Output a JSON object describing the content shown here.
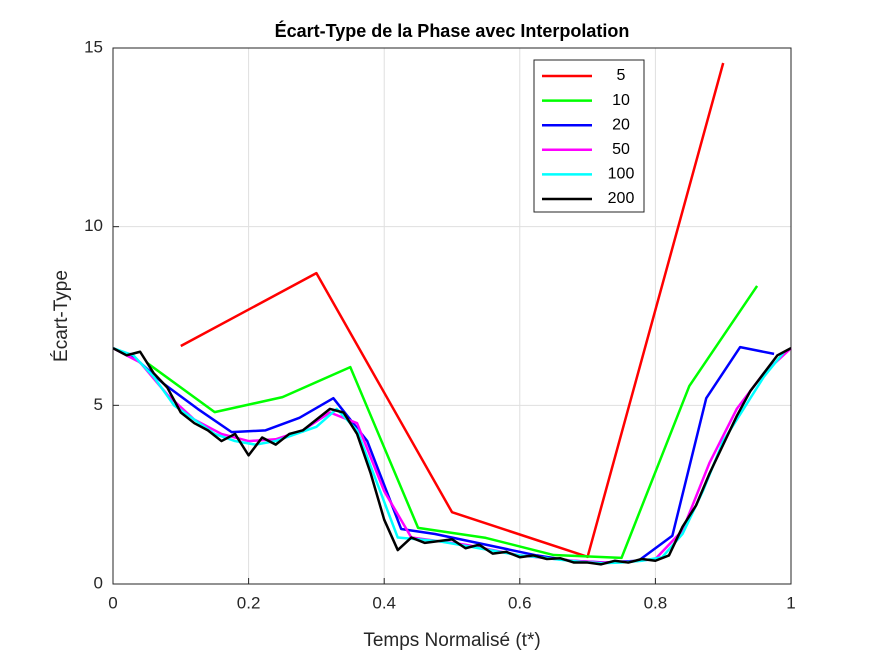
{
  "chart_data": {
    "type": "line",
    "title": "Écart-Type de la Phase avec Interpolation",
    "xlabel": "Temps Normalisé (t*)",
    "ylabel": "Écart-Type",
    "xlim": [
      0,
      1
    ],
    "ylim": [
      0,
      15
    ],
    "xticks": [
      0,
      0.2,
      0.4,
      0.6,
      0.8,
      1
    ],
    "yticks": [
      0,
      5,
      10,
      15
    ],
    "grid": true,
    "legend": "upper right",
    "series": [
      {
        "name": "5",
        "color": "#ff0000",
        "x": [
          0.1,
          0.3,
          0.5,
          0.7,
          0.9
        ],
        "values": [
          6.66,
          8.7,
          2.01,
          0.76,
          14.58
        ]
      },
      {
        "name": "10",
        "color": "#00ff00",
        "x": [
          0.05,
          0.15,
          0.25,
          0.35,
          0.45,
          0.55,
          0.65,
          0.75,
          0.85,
          0.95
        ],
        "values": [
          6.19,
          4.81,
          5.23,
          6.07,
          1.57,
          1.29,
          0.81,
          0.73,
          5.54,
          8.34
        ]
      },
      {
        "name": "20",
        "color": "#0000ff",
        "x": [
          0.025,
          0.075,
          0.125,
          0.175,
          0.225,
          0.275,
          0.325,
          0.375,
          0.425,
          0.475,
          0.525,
          0.575,
          0.625,
          0.675,
          0.725,
          0.775,
          0.825,
          0.875,
          0.925,
          0.975
        ],
        "values": [
          6.45,
          5.6,
          4.9,
          4.25,
          4.3,
          4.65,
          5.2,
          4.0,
          1.54,
          1.4,
          1.2,
          1.0,
          0.8,
          0.65,
          0.6,
          0.65,
          1.35,
          5.2,
          6.63,
          6.44
        ]
      },
      {
        "name": "50",
        "color": "#ff00ff",
        "x": [
          0,
          0.04,
          0.08,
          0.12,
          0.16,
          0.2,
          0.24,
          0.28,
          0.32,
          0.36,
          0.4,
          0.44,
          0.48,
          0.52,
          0.56,
          0.6,
          0.64,
          0.68,
          0.72,
          0.76,
          0.8,
          0.84,
          0.88,
          0.92,
          0.96,
          1
        ],
        "values": [
          6.6,
          6.2,
          5.3,
          4.6,
          4.2,
          4.0,
          4.05,
          4.3,
          4.8,
          4.5,
          2.6,
          1.3,
          1.2,
          1.1,
          0.95,
          0.8,
          0.72,
          0.65,
          0.6,
          0.62,
          0.7,
          1.5,
          3.4,
          4.9,
          5.9,
          6.6
        ]
      },
      {
        "name": "100",
        "color": "#00ffff",
        "x": [
          0,
          0.03,
          0.06,
          0.09,
          0.12,
          0.15,
          0.18,
          0.21,
          0.24,
          0.27,
          0.3,
          0.33,
          0.36,
          0.39,
          0.42,
          0.45,
          0.48,
          0.51,
          0.54,
          0.57,
          0.6,
          0.63,
          0.66,
          0.69,
          0.72,
          0.75,
          0.78,
          0.81,
          0.84,
          0.87,
          0.9,
          0.93,
          0.96,
          0.99
        ],
        "values": [
          6.6,
          6.4,
          5.8,
          5.0,
          4.6,
          4.2,
          4.0,
          3.9,
          4.0,
          4.2,
          4.4,
          4.9,
          4.3,
          2.8,
          1.3,
          1.25,
          1.2,
          1.1,
          1.0,
          0.9,
          0.8,
          0.75,
          0.68,
          0.62,
          0.58,
          0.6,
          0.65,
          0.75,
          1.4,
          2.6,
          4.0,
          4.9,
          5.8,
          6.5
        ]
      },
      {
        "name": "200",
        "color": "#000000",
        "x": [
          0,
          0.02,
          0.04,
          0.06,
          0.08,
          0.1,
          0.12,
          0.14,
          0.16,
          0.18,
          0.2,
          0.22,
          0.24,
          0.26,
          0.28,
          0.3,
          0.32,
          0.34,
          0.36,
          0.38,
          0.4,
          0.42,
          0.44,
          0.46,
          0.48,
          0.5,
          0.52,
          0.54,
          0.56,
          0.58,
          0.6,
          0.62,
          0.64,
          0.66,
          0.68,
          0.7,
          0.72,
          0.74,
          0.76,
          0.78,
          0.8,
          0.82,
          0.84,
          0.86,
          0.88,
          0.9,
          0.92,
          0.94,
          0.96,
          0.98,
          1
        ],
        "values": [
          6.6,
          6.4,
          6.5,
          5.9,
          5.5,
          4.8,
          4.5,
          4.3,
          4.0,
          4.2,
          3.6,
          4.1,
          3.9,
          4.2,
          4.3,
          4.6,
          4.9,
          4.8,
          4.2,
          3.1,
          1.8,
          0.95,
          1.3,
          1.15,
          1.2,
          1.25,
          1.0,
          1.1,
          0.85,
          0.9,
          0.75,
          0.8,
          0.7,
          0.72,
          0.6,
          0.6,
          0.55,
          0.65,
          0.6,
          0.7,
          0.65,
          0.8,
          1.6,
          2.2,
          3.1,
          3.9,
          4.7,
          5.4,
          5.9,
          6.4,
          6.6
        ]
      }
    ]
  }
}
